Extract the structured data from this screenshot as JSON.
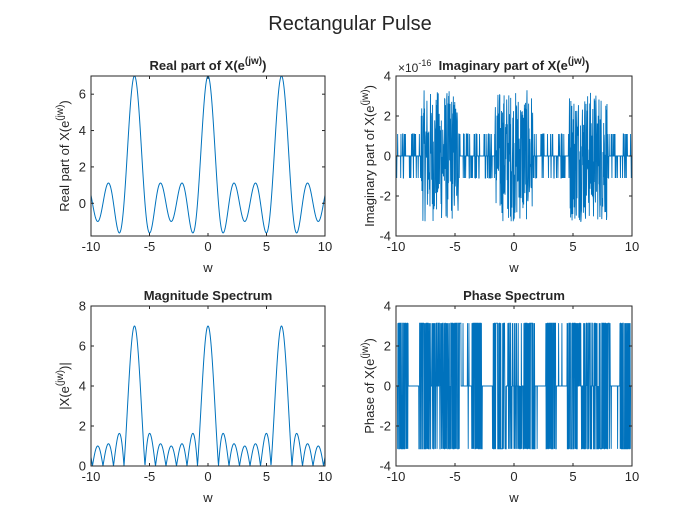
{
  "figure": {
    "suptitle": "Rectangular Pulse",
    "line_color": "#0072BD",
    "axes_color": "#262626"
  },
  "chart_data": [
    {
      "type": "line",
      "title": "Real part of X(e^(jw))",
      "title_main": "Real part of X(e",
      "title_sup": "(jw)",
      "title_end": ")",
      "xlabel": "w",
      "ylabel_main": "Real part of X(e",
      "ylabel_sup": "(jw)",
      "ylabel_end": ")",
      "xlim": [
        -10,
        10
      ],
      "ylim": [
        -1.8,
        7
      ],
      "xticks": [
        -10,
        -5,
        0,
        5,
        10
      ],
      "yticks": [
        0,
        2,
        4,
        6
      ],
      "exponent_label": "",
      "series": [
        {
          "values_description": "Re(X) = sin(3.5w)/sin(0.5w), dense sampling of w in [-10, 10]"
        }
      ]
    },
    {
      "type": "line",
      "title": "Imaginary part of X(e^(jw))",
      "title_main": "Imaginary part of X(e",
      "title_sup": "(jw)",
      "title_end": ")",
      "xlabel": "w",
      "ylabel_main": "Imaginary part of X(e",
      "ylabel_sup": "(jw)",
      "ylabel_end": ")",
      "xlim": [
        -10,
        10
      ],
      "ylim": [
        -4,
        4
      ],
      "xticks": [
        -10,
        -5,
        0,
        5,
        10
      ],
      "yticks": [
        -4,
        -2,
        0,
        2,
        4
      ],
      "exponent_label": "×10",
      "exponent_power": "-16",
      "series": [
        {
          "values_description": "numerical noise of order 1e-16 around zero"
        }
      ]
    },
    {
      "type": "line",
      "title": "Magnitude Spectrum",
      "xlabel": "w",
      "ylabel_main": "|X(e",
      "ylabel_sup": "(jw)",
      "ylabel_end": ")|",
      "xlim": [
        -10,
        10
      ],
      "ylim": [
        0,
        8
      ],
      "xticks": [
        -10,
        -5,
        0,
        5,
        10
      ],
      "yticks": [
        0,
        2,
        4,
        6,
        8
      ],
      "exponent_label": "",
      "series": [
        {
          "values_description": "|sin(3.5w)/sin(0.5w)|"
        }
      ]
    },
    {
      "type": "line",
      "title": "Phase Spectrum",
      "xlabel": "w",
      "ylabel_main": "Phase of X(e",
      "ylabel_sup": "(jw)",
      "ylabel_end": ")",
      "xlim": [
        -10,
        10
      ],
      "ylim": [
        -4,
        4
      ],
      "xticks": [
        -10,
        -5,
        0,
        5,
        10
      ],
      "yticks": [
        -4,
        -2,
        0,
        2,
        4
      ],
      "exponent_label": "",
      "series": [
        {
          "values_description": "phase in {-pi, 0, pi}"
        }
      ]
    }
  ]
}
